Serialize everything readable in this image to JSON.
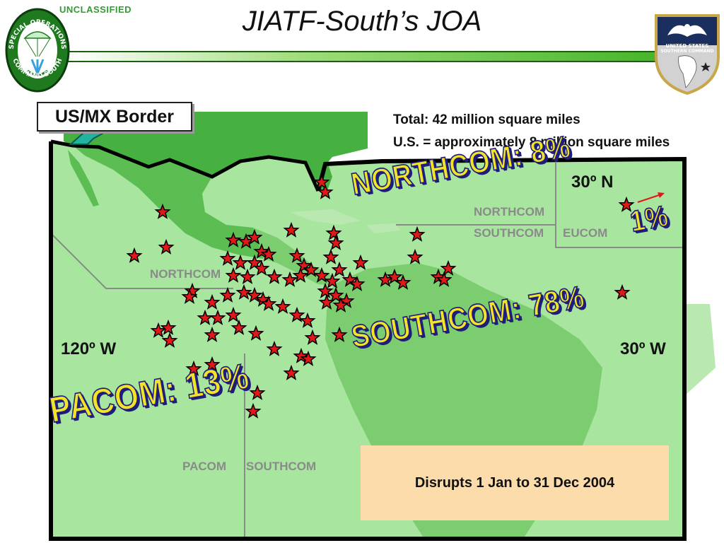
{
  "header": {
    "classification": "UNCLASSIFIED",
    "title": "JIATF-South’s JOA"
  },
  "logos": {
    "left": {
      "text_top": "SPECIAL OPERATIONS",
      "text_bottom": "COMMAND SOUTH",
      "icon": "parachute-trident-icon"
    },
    "right": {
      "text_line1": "UNITED STATES",
      "text_line2": "SOUTHERN COMMAND",
      "icon": "eagle-shield-icon"
    }
  },
  "map": {
    "border_label": "US/MX Border",
    "totals": {
      "line1": "Total: 42 million square miles",
      "line2": "U.S. = approximately 8 million square miles"
    },
    "coordinates": {
      "north": "30º N",
      "west_left": "120º W",
      "west_right": "30º W"
    },
    "region_labels": {
      "northcom_east": "NORTHCOM",
      "southcom_east": "SOUTHCOM",
      "eucom": "EUCOM",
      "northcom_west": "NORTHCOM",
      "pacom": "PACOM",
      "southcom_south": "SOUTHCOM"
    },
    "commands": {
      "northcom": "NORTHCOM:  8%",
      "southcom": "SOUTHCOM:  78%",
      "pacom": "PACOM:  13%",
      "eucom": "1%"
    },
    "disrupts": "Disrupts 1 Jan to 31 Dec 2004",
    "colors": {
      "joa_fill": "#a8e6a0",
      "land_dark": "#3fae3f",
      "land_light": "#b9e8b1",
      "marker": "#e01818",
      "command_text": "#f2e22a"
    }
  }
}
